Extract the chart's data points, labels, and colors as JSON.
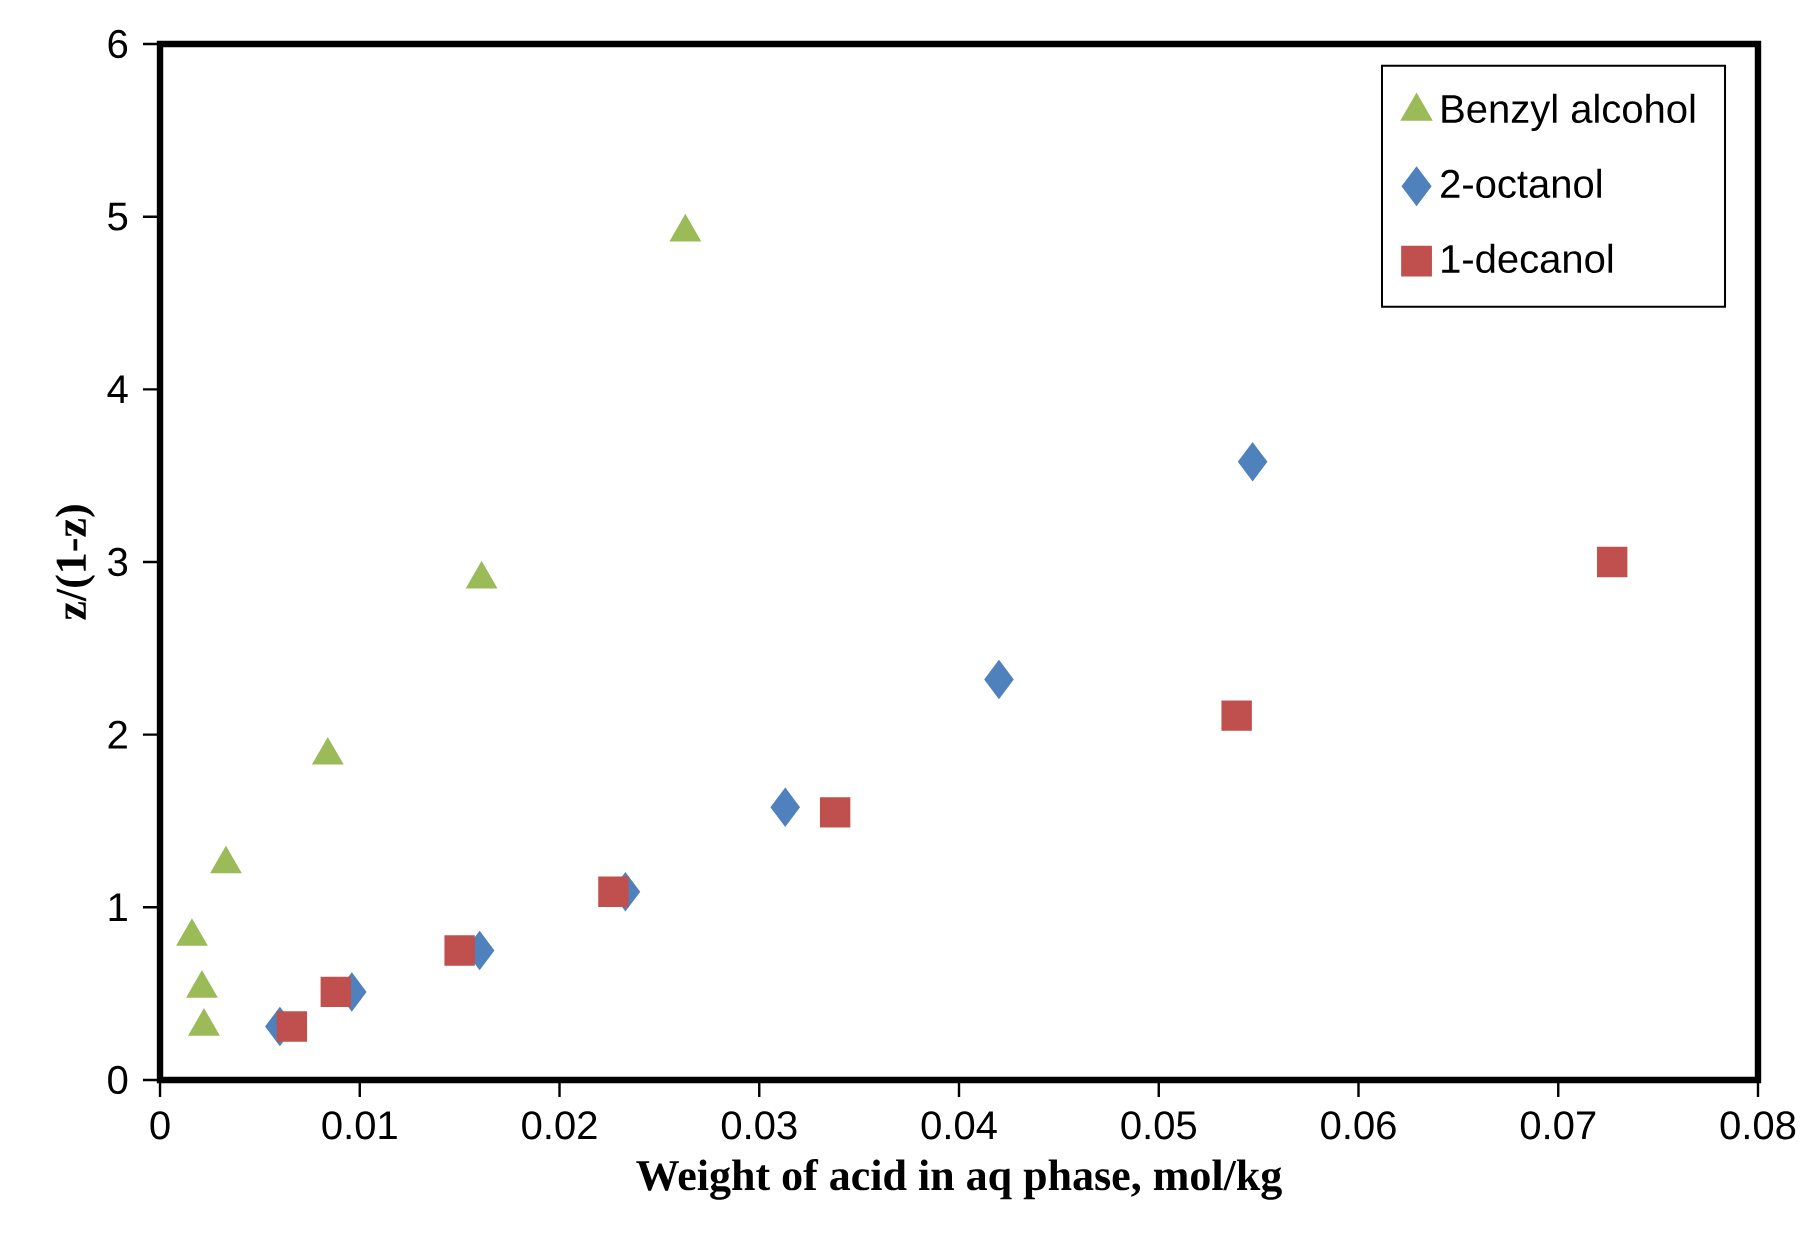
{
  "chart_data": {
    "type": "scatter",
    "xlabel": "Weight of acid in aq phase, mol/kg",
    "ylabel": "z/(1-z)",
    "xlim": [
      0,
      0.08
    ],
    "xticks": [
      0,
      0.01,
      0.02,
      0.03,
      0.04,
      0.05,
      0.06,
      0.07,
      0.08
    ],
    "ylim": [
      0,
      6
    ],
    "yticks": [
      0,
      1,
      2,
      3,
      4,
      5,
      6
    ],
    "legend": "top right",
    "series": [
      {
        "name": "Benzyl alcohol",
        "color": "#9bbb59",
        "marker": "triangle",
        "x": [
          0.0016,
          0.0021,
          0.0022,
          0.0033,
          0.0084,
          0.0161,
          0.0263
        ],
        "values": [
          0.83,
          0.53,
          0.31,
          1.25,
          1.88,
          2.9,
          4.91
        ]
      },
      {
        "name": "2-octanol",
        "color": "#4f81bd",
        "marker": "diamond",
        "x": [
          0.006,
          0.0096,
          0.016,
          0.0233,
          0.0313,
          0.042,
          0.0547
        ],
        "values": [
          0.31,
          0.51,
          0.75,
          1.09,
          1.58,
          2.32,
          3.58
        ]
      },
      {
        "name": "1-decanol",
        "color": "#c0504d",
        "marker": "square",
        "x": [
          0.0066,
          0.0088,
          0.015,
          0.0227,
          0.0338,
          0.0539,
          0.0727
        ],
        "values": [
          0.31,
          0.51,
          0.75,
          1.09,
          1.55,
          2.11,
          3.0
        ]
      }
    ]
  }
}
